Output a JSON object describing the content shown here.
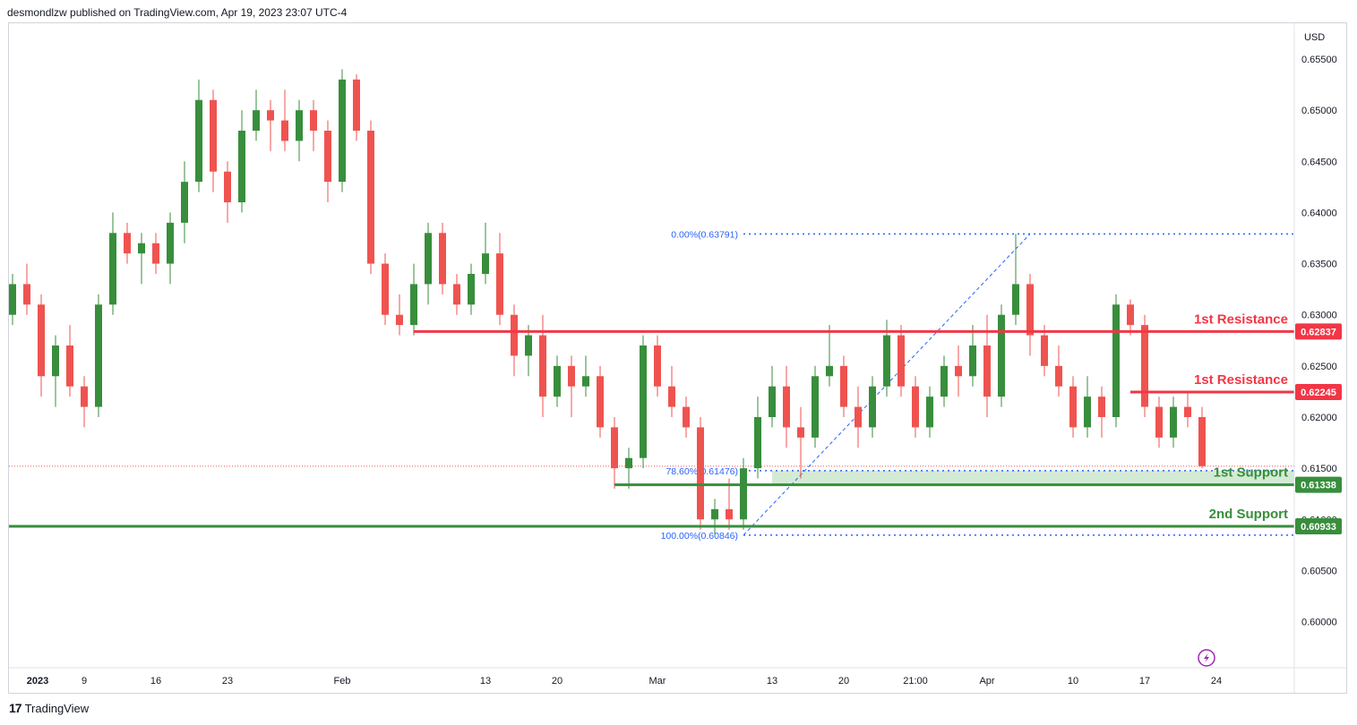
{
  "header": {
    "published_text": "desmondlzw published on TradingView.com, Apr 19, 2023 23:07 UTC-4"
  },
  "footer": {
    "logo": "17",
    "brand": "TradingView"
  },
  "colors": {
    "up": "#388e3c",
    "down": "#ef5350",
    "resistance": "#f23645",
    "support": "#388e3c",
    "fib": "#2962ff",
    "support_zone": "#c8e6c9"
  },
  "chart_data": {
    "type": "candlestick",
    "currency_label": "USD",
    "ylim": [
      0.5955,
      0.6585
    ],
    "y_ticks": [
      "0.65500",
      "0.65000",
      "0.64500",
      "0.64000",
      "0.63500",
      "0.63000",
      "0.62500",
      "0.62000",
      "0.61500",
      "0.61000",
      "0.60500",
      "0.60000"
    ],
    "x_ticks": [
      {
        "label": "2023",
        "bar": 0
      },
      {
        "label": "9",
        "bar": 5
      },
      {
        "label": "16",
        "bar": 10
      },
      {
        "label": "23",
        "bar": 15
      },
      {
        "label": "Feb",
        "bar": 23
      },
      {
        "label": "13",
        "bar": 33
      },
      {
        "label": "20",
        "bar": 38
      },
      {
        "label": "Mar",
        "bar": 45
      },
      {
        "label": "13",
        "bar": 53
      },
      {
        "label": "20",
        "bar": 58
      },
      {
        "label": "21:00",
        "bar": 63
      },
      {
        "label": "Apr",
        "bar": 68
      },
      {
        "label": "10",
        "bar": 74
      },
      {
        "label": "17",
        "bar": 79
      },
      {
        "label": "24",
        "bar": 84
      }
    ],
    "levels": [
      {
        "name": "1st Resistance",
        "value": 0.62837,
        "tag": "0.62837",
        "kind": "resistance",
        "from_bar": 28
      },
      {
        "name": "1st Resistance",
        "value": 0.62245,
        "tag": "0.62245",
        "kind": "resistance",
        "from_bar": 78
      },
      {
        "name": "1st Support",
        "value": 0.61338,
        "tag": "0.61338",
        "kind": "support",
        "from_bar": 42
      },
      {
        "name": "2nd Support",
        "value": 0.60933,
        "tag": "0.60933",
        "kind": "support",
        "from_bar": 0
      }
    ],
    "fibonacci": [
      {
        "label": "0.00%(0.63791)",
        "value": 0.63791
      },
      {
        "label": "78.60%(0.61476)",
        "value": 0.61476
      },
      {
        "label": "100.00%(0.60846)",
        "value": 0.60846
      }
    ],
    "fib_trend": {
      "from_value": 0.60846,
      "to_value": 0.63791
    },
    "current_price_line": 0.6152,
    "candles": [
      [
        0.63,
        0.634,
        0.629,
        0.633
      ],
      [
        0.633,
        0.635,
        0.63,
        0.631
      ],
      [
        0.631,
        0.632,
        0.622,
        0.624
      ],
      [
        0.624,
        0.628,
        0.621,
        0.627
      ],
      [
        0.627,
        0.629,
        0.622,
        0.623
      ],
      [
        0.623,
        0.624,
        0.619,
        0.621
      ],
      [
        0.621,
        0.632,
        0.62,
        0.631
      ],
      [
        0.631,
        0.64,
        0.63,
        0.638
      ],
      [
        0.638,
        0.639,
        0.635,
        0.636
      ],
      [
        0.636,
        0.638,
        0.633,
        0.637
      ],
      [
        0.637,
        0.638,
        0.634,
        0.635
      ],
      [
        0.635,
        0.64,
        0.633,
        0.639
      ],
      [
        0.639,
        0.645,
        0.637,
        0.643
      ],
      [
        0.643,
        0.653,
        0.642,
        0.651
      ],
      [
        0.651,
        0.652,
        0.642,
        0.644
      ],
      [
        0.644,
        0.645,
        0.639,
        0.641
      ],
      [
        0.641,
        0.65,
        0.64,
        0.648
      ],
      [
        0.648,
        0.652,
        0.647,
        0.65
      ],
      [
        0.65,
        0.651,
        0.646,
        0.649
      ],
      [
        0.649,
        0.652,
        0.646,
        0.647
      ],
      [
        0.647,
        0.651,
        0.645,
        0.65
      ],
      [
        0.65,
        0.651,
        0.646,
        0.648
      ],
      [
        0.648,
        0.649,
        0.641,
        0.643
      ],
      [
        0.643,
        0.654,
        0.642,
        0.653
      ],
      [
        0.653,
        0.6535,
        0.647,
        0.648
      ],
      [
        0.648,
        0.649,
        0.634,
        0.635
      ],
      [
        0.635,
        0.636,
        0.629,
        0.63
      ],
      [
        0.63,
        0.632,
        0.628,
        0.629
      ],
      [
        0.629,
        0.635,
        0.628,
        0.633
      ],
      [
        0.633,
        0.639,
        0.631,
        0.638
      ],
      [
        0.638,
        0.639,
        0.632,
        0.633
      ],
      [
        0.633,
        0.634,
        0.63,
        0.631
      ],
      [
        0.631,
        0.635,
        0.63,
        0.634
      ],
      [
        0.634,
        0.639,
        0.633,
        0.636
      ],
      [
        0.636,
        0.638,
        0.629,
        0.63
      ],
      [
        0.63,
        0.631,
        0.624,
        0.626
      ],
      [
        0.626,
        0.629,
        0.624,
        0.628
      ],
      [
        0.628,
        0.63,
        0.62,
        0.622
      ],
      [
        0.622,
        0.626,
        0.621,
        0.625
      ],
      [
        0.625,
        0.626,
        0.62,
        0.623
      ],
      [
        0.623,
        0.626,
        0.622,
        0.624
      ],
      [
        0.624,
        0.625,
        0.618,
        0.619
      ],
      [
        0.619,
        0.62,
        0.613,
        0.615
      ],
      [
        0.615,
        0.617,
        0.613,
        0.616
      ],
      [
        0.616,
        0.628,
        0.615,
        0.627
      ],
      [
        0.627,
        0.628,
        0.622,
        0.623
      ],
      [
        0.623,
        0.625,
        0.62,
        0.621
      ],
      [
        0.621,
        0.622,
        0.618,
        0.619
      ],
      [
        0.619,
        0.62,
        0.609,
        0.61
      ],
      [
        0.61,
        0.612,
        0.6085,
        0.611
      ],
      [
        0.611,
        0.614,
        0.609,
        0.61
      ],
      [
        0.61,
        0.616,
        0.609,
        0.615
      ],
      [
        0.615,
        0.622,
        0.614,
        0.62
      ],
      [
        0.62,
        0.625,
        0.619,
        0.623
      ],
      [
        0.623,
        0.625,
        0.617,
        0.619
      ],
      [
        0.619,
        0.621,
        0.614,
        0.618
      ],
      [
        0.618,
        0.625,
        0.617,
        0.624
      ],
      [
        0.624,
        0.629,
        0.623,
        0.625
      ],
      [
        0.625,
        0.626,
        0.62,
        0.621
      ],
      [
        0.621,
        0.623,
        0.617,
        0.619
      ],
      [
        0.619,
        0.624,
        0.618,
        0.623
      ],
      [
        0.623,
        0.6295,
        0.622,
        0.628
      ],
      [
        0.628,
        0.629,
        0.622,
        0.623
      ],
      [
        0.623,
        0.624,
        0.618,
        0.619
      ],
      [
        0.619,
        0.623,
        0.618,
        0.622
      ],
      [
        0.622,
        0.626,
        0.621,
        0.625
      ],
      [
        0.625,
        0.627,
        0.622,
        0.624
      ],
      [
        0.624,
        0.629,
        0.623,
        0.627
      ],
      [
        0.627,
        0.63,
        0.62,
        0.622
      ],
      [
        0.622,
        0.631,
        0.621,
        0.63
      ],
      [
        0.63,
        0.6379,
        0.629,
        0.633
      ],
      [
        0.633,
        0.634,
        0.626,
        0.628
      ],
      [
        0.628,
        0.629,
        0.624,
        0.625
      ],
      [
        0.625,
        0.627,
        0.622,
        0.623
      ],
      [
        0.623,
        0.624,
        0.618,
        0.619
      ],
      [
        0.619,
        0.624,
        0.618,
        0.622
      ],
      [
        0.622,
        0.623,
        0.618,
        0.62
      ],
      [
        0.62,
        0.632,
        0.619,
        0.631
      ],
      [
        0.631,
        0.6315,
        0.628,
        0.629
      ],
      [
        0.629,
        0.63,
        0.62,
        0.621
      ],
      [
        0.621,
        0.622,
        0.617,
        0.618
      ],
      [
        0.618,
        0.622,
        0.617,
        0.621
      ],
      [
        0.621,
        0.6225,
        0.619,
        0.62
      ],
      [
        0.62,
        0.621,
        0.615,
        0.6152
      ]
    ]
  }
}
